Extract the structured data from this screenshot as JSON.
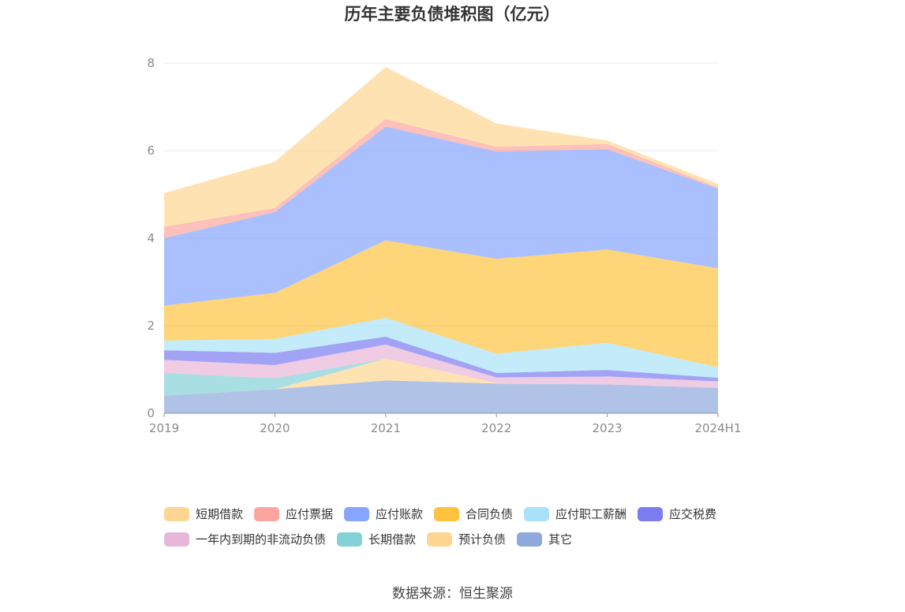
{
  "chart_data": {
    "type": "area",
    "stacked": true,
    "title": "历年主要负债堆积图（亿元）",
    "xlabel": "",
    "ylabel": "",
    "x": [
      "2019",
      "2020",
      "2021",
      "2022",
      "2023",
      "2024H1"
    ],
    "ylim": [
      0,
      8
    ],
    "yticks": [
      "0",
      "2",
      "4",
      "6",
      "8"
    ],
    "grid": true,
    "legend_position": "bottom",
    "series": [
      {
        "name": "其它",
        "color": "#8fa9dc",
        "values": [
          0.4,
          0.55,
          0.75,
          0.68,
          0.66,
          0.58
        ]
      },
      {
        "name": "预计负债",
        "color": "#ffd592",
        "values": [
          0.0,
          0.0,
          0.5,
          0.01,
          0.0,
          0.0
        ]
      },
      {
        "name": "长期借款",
        "color": "#84d2d6",
        "values": [
          0.52,
          0.25,
          0.0,
          0.0,
          0.0,
          0.0
        ]
      },
      {
        "name": "一年内到期的非流动负债",
        "color": "#e8b6d9",
        "values": [
          0.3,
          0.3,
          0.32,
          0.13,
          0.18,
          0.15
        ]
      },
      {
        "name": "应交税费",
        "color": "#7b7cf0",
        "values": [
          0.22,
          0.28,
          0.18,
          0.1,
          0.15,
          0.08
        ]
      },
      {
        "name": "应付职工薪酬",
        "color": "#a9e2f8",
        "values": [
          0.22,
          0.32,
          0.43,
          0.44,
          0.62,
          0.24
        ]
      },
      {
        "name": "合同负债",
        "color": "#fec33e",
        "values": [
          0.8,
          1.05,
          1.77,
          2.17,
          2.13,
          2.26
        ]
      },
      {
        "name": "应付账款",
        "color": "#86a5fd",
        "values": [
          1.54,
          1.85,
          2.6,
          2.45,
          2.29,
          1.82
        ]
      },
      {
        "name": "应付票据",
        "color": "#fca59d",
        "values": [
          0.26,
          0.09,
          0.17,
          0.11,
          0.12,
          0.03
        ]
      },
      {
        "name": "短期借款",
        "color": "#ffd592",
        "values": [
          0.77,
          1.06,
          1.19,
          0.53,
          0.08,
          0.08
        ]
      }
    ],
    "legend_order": [
      "短期借款",
      "应付票据",
      "应付账款",
      "合同负债",
      "应付职工薪酬",
      "应交税费",
      "一年内到期的非流动负债",
      "长期借款",
      "预计负债",
      "其它"
    ]
  },
  "source_text": "数据来源：恒生聚源"
}
